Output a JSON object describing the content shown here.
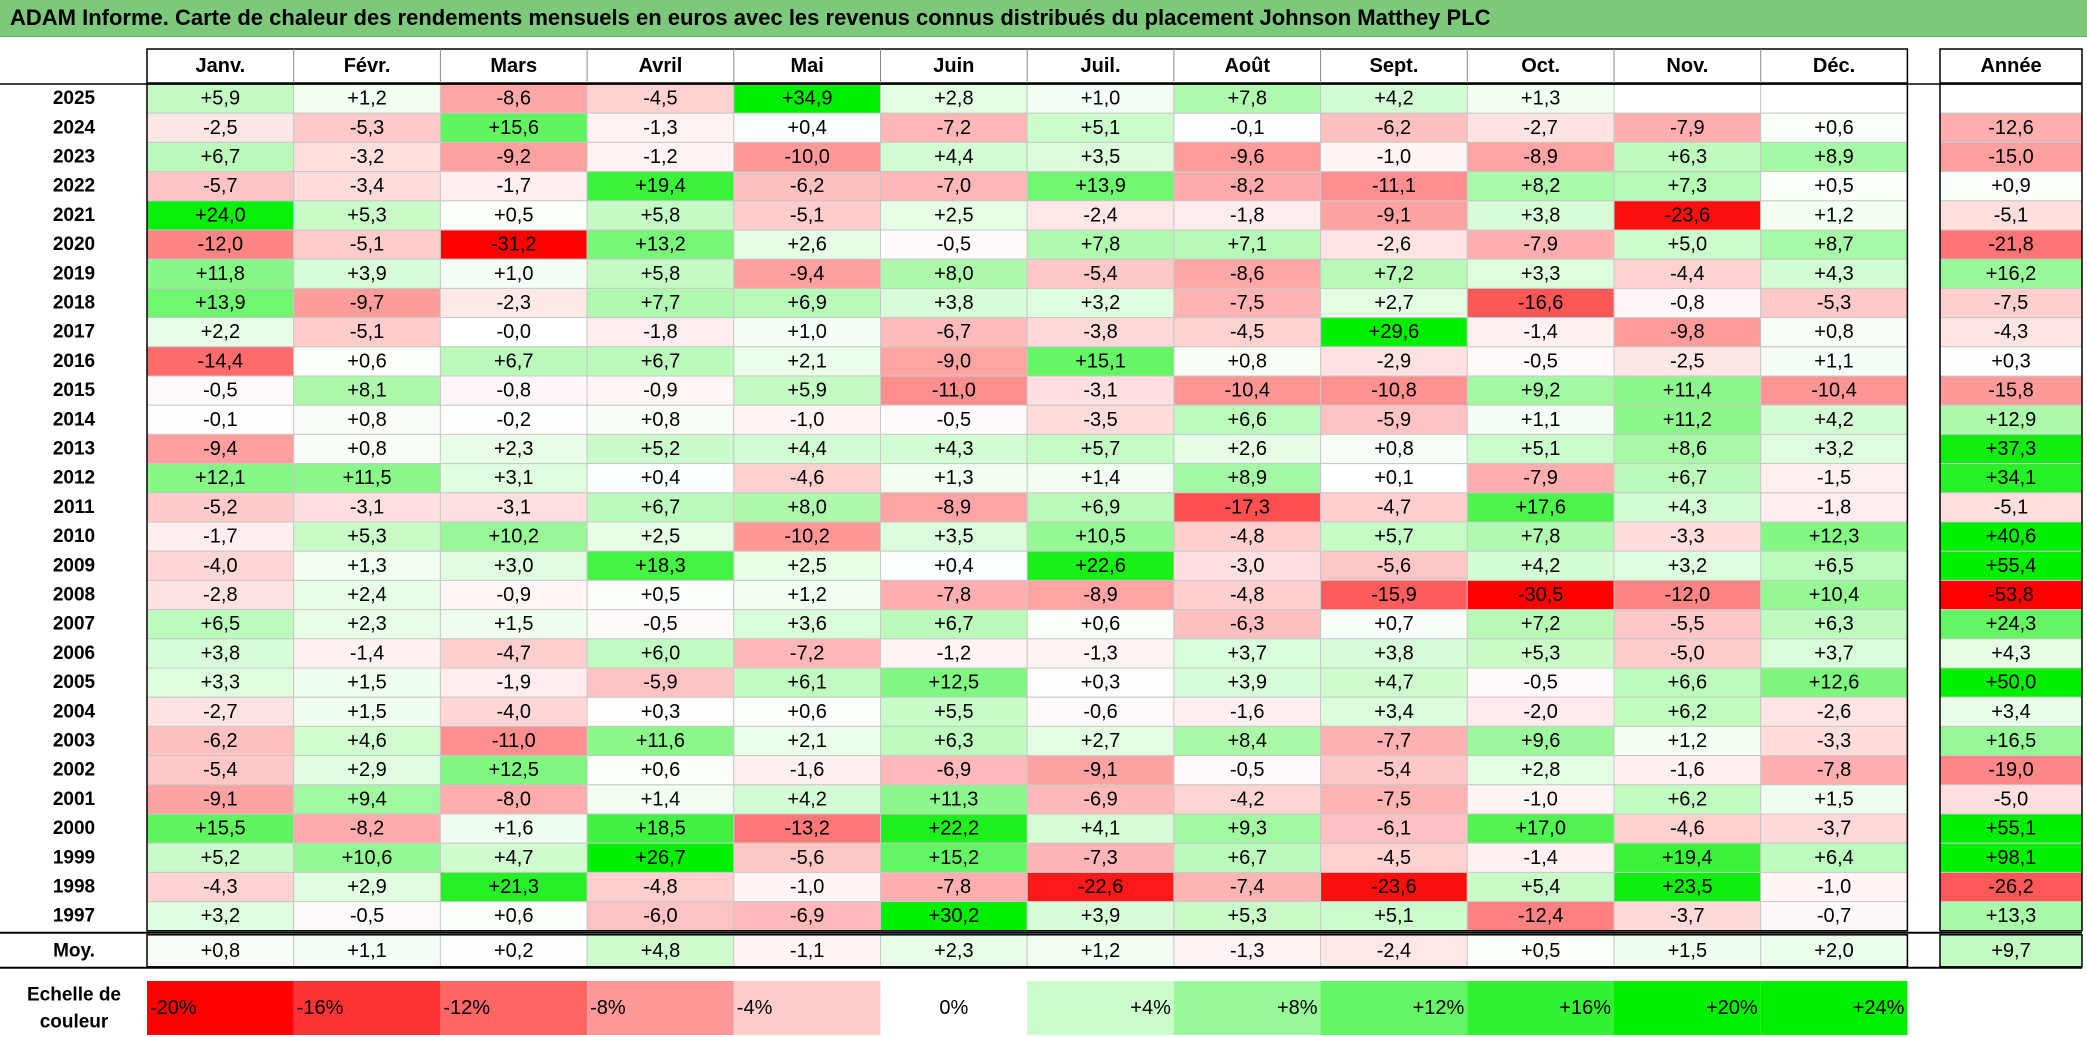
{
  "title": "ADAM Informe. Carte de chaleur des rendements mensuels en euros avec les revenus connus distribués du placement Johnson Matthey PLC",
  "chart_data": {
    "type": "heatmap",
    "columns": [
      "Janv.",
      "Févr.",
      "Mars",
      "Avril",
      "Mai",
      "Juin",
      "Juil.",
      "Août",
      "Sept.",
      "Oct.",
      "Nov.",
      "Déc."
    ],
    "annual_column": "Année",
    "rows": [
      {
        "year": "2025",
        "values": [
          "+5,9",
          "+1,2",
          "-8,6",
          "-4,5",
          "+34,9",
          "+2,8",
          "+1,0",
          "+7,8",
          "+4,2",
          "+1,3",
          "",
          ""
        ],
        "annual": ""
      },
      {
        "year": "2024",
        "values": [
          "-2,5",
          "-5,3",
          "+15,6",
          "-1,3",
          "+0,4",
          "-7,2",
          "+5,1",
          "-0,1",
          "-6,2",
          "-2,7",
          "-7,9",
          "+0,6"
        ],
        "annual": "-12,6"
      },
      {
        "year": "2023",
        "values": [
          "+6,7",
          "-3,2",
          "-9,2",
          "-1,2",
          "-10,0",
          "+4,4",
          "+3,5",
          "-9,6",
          "-1,0",
          "-8,9",
          "+6,3",
          "+8,9"
        ],
        "annual": "-15,0"
      },
      {
        "year": "2022",
        "values": [
          "-5,7",
          "-3,4",
          "-1,7",
          "+19,4",
          "-6,2",
          "-7,0",
          "+13,9",
          "-8,2",
          "-11,1",
          "+8,2",
          "+7,3",
          "+0,5"
        ],
        "annual": "+0,9"
      },
      {
        "year": "2021",
        "values": [
          "+24,0",
          "+5,3",
          "+0,5",
          "+5,8",
          "-5,1",
          "+2,5",
          "-2,4",
          "-1,8",
          "-9,1",
          "+3,8",
          "-23,6",
          "+1,2"
        ],
        "annual": "-5,1"
      },
      {
        "year": "2020",
        "values": [
          "-12,0",
          "-5,1",
          "-31,2",
          "+13,2",
          "+2,6",
          "-0,5",
          "+7,8",
          "+7,1",
          "-2,6",
          "-7,9",
          "+5,0",
          "+8,7"
        ],
        "annual": "-21,8"
      },
      {
        "year": "2019",
        "values": [
          "+11,8",
          "+3,9",
          "+1,0",
          "+5,8",
          "-9,4",
          "+8,0",
          "-5,4",
          "-8,6",
          "+7,2",
          "+3,3",
          "-4,4",
          "+4,3"
        ],
        "annual": "+16,2"
      },
      {
        "year": "2018",
        "values": [
          "+13,9",
          "-9,7",
          "-2,3",
          "+7,7",
          "+6,9",
          "+3,8",
          "+3,2",
          "-7,5",
          "+2,7",
          "-16,6",
          "-0,8",
          "-5,3"
        ],
        "annual": "-7,5"
      },
      {
        "year": "2017",
        "values": [
          "+2,2",
          "-5,1",
          "-0,0",
          "-1,8",
          "+1,0",
          "-6,7",
          "-3,8",
          "-4,5",
          "+29,6",
          "-1,4",
          "-9,8",
          "+0,8"
        ],
        "annual": "-4,3"
      },
      {
        "year": "2016",
        "values": [
          "-14,4",
          "+0,6",
          "+6,7",
          "+6,7",
          "+2,1",
          "-9,0",
          "+15,1",
          "+0,8",
          "-2,9",
          "-0,5",
          "-2,5",
          "+1,1"
        ],
        "annual": "+0,3"
      },
      {
        "year": "2015",
        "values": [
          "-0,5",
          "+8,1",
          "-0,8",
          "-0,9",
          "+5,9",
          "-11,0",
          "-3,1",
          "-10,4",
          "-10,8",
          "+9,2",
          "+11,4",
          "-10,4"
        ],
        "annual": "-15,8"
      },
      {
        "year": "2014",
        "values": [
          "-0,1",
          "+0,8",
          "-0,2",
          "+0,8",
          "-1,0",
          "-0,5",
          "-3,5",
          "+6,6",
          "-5,9",
          "+1,1",
          "+11,2",
          "+4,2"
        ],
        "annual": "+12,9"
      },
      {
        "year": "2013",
        "values": [
          "-9,4",
          "+0,8",
          "+2,3",
          "+5,2",
          "+4,4",
          "+4,3",
          "+5,7",
          "+2,6",
          "+0,8",
          "+5,1",
          "+8,6",
          "+3,2"
        ],
        "annual": "+37,3"
      },
      {
        "year": "2012",
        "values": [
          "+12,1",
          "+11,5",
          "+3,1",
          "+0,4",
          "-4,6",
          "+1,3",
          "+1,4",
          "+8,9",
          "+0,1",
          "-7,9",
          "+6,7",
          "-1,5"
        ],
        "annual": "+34,1"
      },
      {
        "year": "2011",
        "values": [
          "-5,2",
          "-3,1",
          "-3,1",
          "+6,7",
          "+8,0",
          "-8,9",
          "+6,9",
          "-17,3",
          "-4,7",
          "+17,6",
          "+4,3",
          "-1,8"
        ],
        "annual": "-5,1"
      },
      {
        "year": "2010",
        "values": [
          "-1,7",
          "+5,3",
          "+10,2",
          "+2,5",
          "-10,2",
          "+3,5",
          "+10,5",
          "-4,8",
          "+5,7",
          "+7,8",
          "-3,3",
          "+12,3"
        ],
        "annual": "+40,6"
      },
      {
        "year": "2009",
        "values": [
          "-4,0",
          "+1,3",
          "+3,0",
          "+18,3",
          "+2,5",
          "+0,4",
          "+22,6",
          "-3,0",
          "-5,6",
          "+4,2",
          "+3,2",
          "+6,5"
        ],
        "annual": "+55,4"
      },
      {
        "year": "2008",
        "values": [
          "-2,8",
          "+2,4",
          "-0,9",
          "+0,5",
          "+1,2",
          "-7,8",
          "-8,9",
          "-4,8",
          "-15,9",
          "-30,5",
          "-12,0",
          "+10,4"
        ],
        "annual": "-53,8"
      },
      {
        "year": "2007",
        "values": [
          "+6,5",
          "+2,3",
          "+1,5",
          "-0,5",
          "+3,6",
          "+6,7",
          "+0,6",
          "-6,3",
          "+0,7",
          "+7,2",
          "-5,5",
          "+6,3"
        ],
        "annual": "+24,3"
      },
      {
        "year": "2006",
        "values": [
          "+3,8",
          "-1,4",
          "-4,7",
          "+6,0",
          "-7,2",
          "-1,2",
          "-1,3",
          "+3,7",
          "+3,8",
          "+5,3",
          "-5,0",
          "+3,7"
        ],
        "annual": "+4,3"
      },
      {
        "year": "2005",
        "values": [
          "+3,3",
          "+1,5",
          "-1,9",
          "-5,9",
          "+6,1",
          "+12,5",
          "+0,3",
          "+3,9",
          "+4,7",
          "-0,5",
          "+6,6",
          "+12,6"
        ],
        "annual": "+50,0"
      },
      {
        "year": "2004",
        "values": [
          "-2,7",
          "+1,5",
          "-4,0",
          "+0,3",
          "+0,6",
          "+5,5",
          "-0,6",
          "-1,6",
          "+3,4",
          "-2,0",
          "+6,2",
          "-2,6"
        ],
        "annual": "+3,4"
      },
      {
        "year": "2003",
        "values": [
          "-6,2",
          "+4,6",
          "-11,0",
          "+11,6",
          "+2,1",
          "+6,3",
          "+2,7",
          "+8,4",
          "-7,7",
          "+9,6",
          "+1,2",
          "-3,3"
        ],
        "annual": "+16,5"
      },
      {
        "year": "2002",
        "values": [
          "-5,4",
          "+2,9",
          "+12,5",
          "+0,6",
          "-1,6",
          "-6,9",
          "-9,1",
          "-0,5",
          "-5,4",
          "+2,8",
          "-1,6",
          "-7,8"
        ],
        "annual": "-19,0"
      },
      {
        "year": "2001",
        "values": [
          "-9,1",
          "+9,4",
          "-8,0",
          "+1,4",
          "+4,2",
          "+11,3",
          "-6,9",
          "-4,2",
          "-7,5",
          "-1,0",
          "+6,2",
          "+1,5"
        ],
        "annual": "-5,0"
      },
      {
        "year": "2000",
        "values": [
          "+15,5",
          "-8,2",
          "+1,6",
          "+18,5",
          "-13,2",
          "+22,2",
          "+4,1",
          "+9,3",
          "-6,1",
          "+17,0",
          "-4,6",
          "-3,7"
        ],
        "annual": "+55,1"
      },
      {
        "year": "1999",
        "values": [
          "+5,2",
          "+10,6",
          "+4,7",
          "+26,7",
          "-5,6",
          "+15,2",
          "-7,3",
          "+6,7",
          "-4,5",
          "-1,4",
          "+19,4",
          "+6,4"
        ],
        "annual": "+98,1"
      },
      {
        "year": "1998",
        "values": [
          "-4,3",
          "+2,9",
          "+21,3",
          "-4,8",
          "-1,0",
          "-7,8",
          "-22,6",
          "-7,4",
          "-23,6",
          "+5,4",
          "+23,5",
          "-1,0"
        ],
        "annual": "-26,2"
      },
      {
        "year": "1997",
        "values": [
          "+3,2",
          "-0,5",
          "+0,6",
          "-6,0",
          "-6,9",
          "+30,2",
          "+3,9",
          "+5,3",
          "+5,1",
          "-12,4",
          "-3,7",
          "-0,7"
        ],
        "annual": "+13,3"
      }
    ],
    "average": {
      "label": "Moy.",
      "values": [
        "+0,8",
        "+1,1",
        "+0,2",
        "+4,8",
        "-1,1",
        "+2,3",
        "+1,2",
        "-1,3",
        "-2,4",
        "+0,5",
        "+1,5",
        "+2,0"
      ],
      "annual": "+9,7"
    },
    "scale": {
      "label_line1": "Echelle de",
      "label_line2": "couleur",
      "steps": [
        {
          "label": "-20%",
          "value": -20
        },
        {
          "label": "-16%",
          "value": -16
        },
        {
          "label": "-12%",
          "value": -12
        },
        {
          "label": "-8%",
          "value": -8
        },
        {
          "label": "-4%",
          "value": -4
        },
        {
          "label": "0%",
          "value": 0
        },
        {
          "label": "+4%",
          "value": 4
        },
        {
          "label": "+8%",
          "value": 8
        },
        {
          "label": "+12%",
          "value": 12
        },
        {
          "label": "+16%",
          "value": 16
        },
        {
          "label": "+20%",
          "value": 20
        },
        {
          "label": "+24%",
          "value": 24
        }
      ]
    },
    "colors": {
      "negative_max": "#ff0000",
      "neutral": "#ffffff",
      "positive_max": "#00ee00",
      "title_bar": "#7cc97c"
    }
  }
}
